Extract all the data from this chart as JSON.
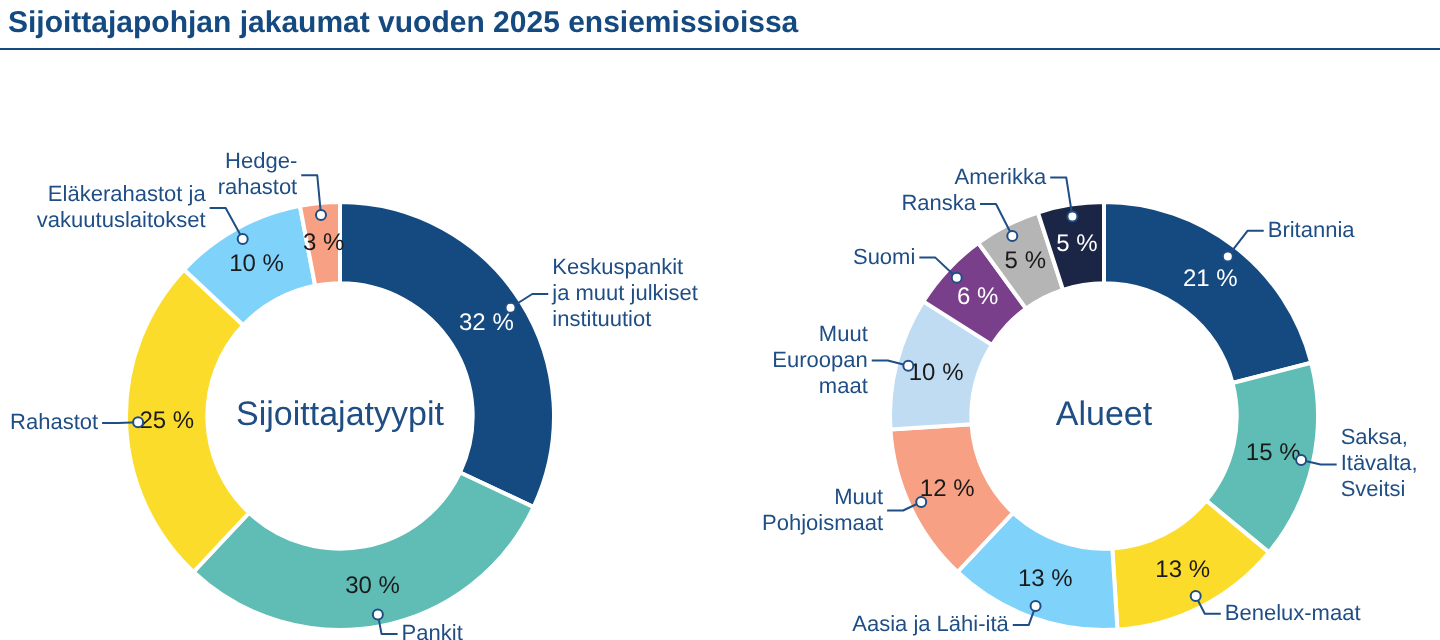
{
  "chart_data": [
    {
      "type": "donut",
      "title": "Sijoittajapohjan jakaumat vuoden 2025 ensiemissioissa",
      "annotations": [
        "Sijoittajatyypit"
      ],
      "categories": [
        "Keskuspankit\nja muut julkiset\ninstituutiot",
        "Pankit",
        "Rahastot",
        "Eläkerahastot ja\nvakuutuslaitokset",
        "Hedge-\nrahastot"
      ],
      "values": [
        32,
        30,
        25,
        10,
        3
      ],
      "value_labels": [
        "32 %",
        "30 %",
        "25 %",
        "10 %",
        "3 %"
      ],
      "colors": [
        "#154a80",
        "#5fbdb5",
        "#fcdc2a",
        "#7fd3fb",
        "#f7a083"
      ]
    },
    {
      "type": "donut",
      "annotations": [
        "Alueet"
      ],
      "categories": [
        "Britannia",
        "Saksa,\nItävalta,\nSveitsi",
        "Benelux-maat",
        "Aasia ja Lähi-itä",
        "Muut\nPohjoismaat",
        "Muut\nEuroopan\nmaat",
        "Suomi",
        "Ranska",
        "Amerikka"
      ],
      "values": [
        21,
        15,
        13,
        13,
        12,
        10,
        6,
        5,
        5
      ],
      "value_labels": [
        "21 %",
        "15 %",
        "13 %",
        "13 %",
        "12 %",
        "10 %",
        "6 %",
        "5 %",
        "5 %"
      ],
      "colors": [
        "#154a80",
        "#5fbdb5",
        "#fcdc2a",
        "#7fd3fb",
        "#f7a083",
        "#c0dcf3",
        "#7a3f8a",
        "#b5b5b5",
        "#1b2646"
      ]
    }
  ]
}
